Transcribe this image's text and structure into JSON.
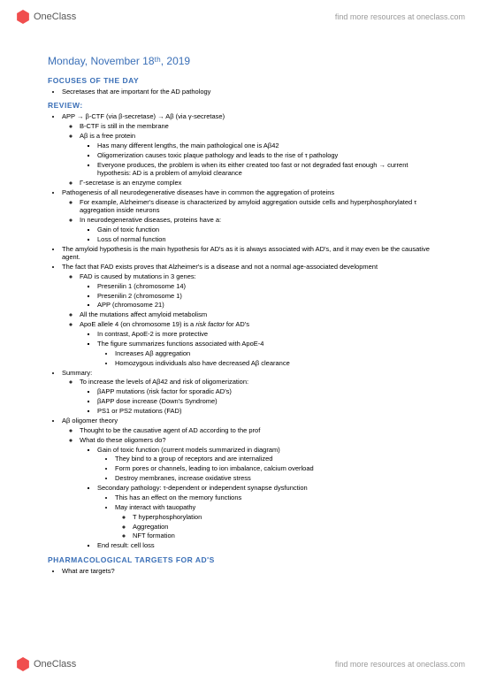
{
  "brand": {
    "name": "OneClass",
    "tagline": "find more resources at oneclass.com"
  },
  "date": "Monday, November 18ᵗʰ, 2019",
  "sections": {
    "focuses": {
      "title": "FOCUSES OF THE DAY",
      "items": [
        "Secretases that are important for the AD pathology"
      ]
    },
    "review": {
      "title": "REVIEW:",
      "app_line": "APP → β-CTF (via β-secretase) → Aβ (via γ-secretase)",
      "app_sub": [
        "Β-CTF is still in the membrane",
        "Aβ is a free protein"
      ],
      "app_sub2": [
        "Has many different lengths, the main pathological one is Aβ42",
        "Oligomerization causes toxic plaque pathology and leads to the rise of τ pathology",
        "Everyone produces, the problem is when its either created too fast or not degraded fast enough → current hypothesis: AD is a problem of amyloid clearance"
      ],
      "app_sub3": "Γ-secretase is an enzyme complex",
      "pathogenesis": "Pathogenesis of all neurodegenerative diseases have in common the aggregation of proteins",
      "pathogenesis_sub": [
        "For example, Alzheimer's disease is characterized by amyloid aggregation outside cells and hyperphosphorylated τ aggregation inside neurons",
        "In neurodegenerative diseases, proteins have a:"
      ],
      "pathogenesis_sub2": [
        "Gain of toxic function",
        "Loss of normal function"
      ],
      "amyloid": "The amyloid hypothesis is the main hypothesis for AD's as it is always associated with AD's, and it may even be the causative agent.",
      "fad": "The fact that FAD exists proves that Alzheimer's is a disease and not a normal age-associated development",
      "fad_genes_intro": "FAD is caused by mutations in 3 genes:",
      "fad_genes": [
        "Presenilin 1 (chromosome 14)",
        "Presenilin 2 (chromosome 1)",
        "APP (chromosome 21)"
      ],
      "mutations": "All the mutations affect amyloid metabolism",
      "apoe": "ApoE allele 4 (on chromosome 19) is a ",
      "apoe_risk": "risk factor",
      "apoe_tail": " for AD's",
      "apoe_sub": [
        "In contrast, ApoE-2 is more protective",
        "The figure summarizes functions associated with ApoE-4"
      ],
      "apoe_sub2": [
        "Increases Aβ aggregation",
        "Homozygous individuals also have decreased Aβ clearance"
      ],
      "summary": "Summary:",
      "summary_intro": "To increase the levels of Aβ42 and risk of oligomerization:",
      "summary_items": [
        "βAPP mutations (risk factor for sporadic AD's)",
        "βAPP dose increase (Down's Syndrome)",
        "PS1 or PS2 mutations (FAD)"
      ],
      "oligomer": "Aβ oligomer theory",
      "oligomer_sub": [
        "Thought to be the causative agent of AD according to the prof",
        "What do these oligomers do?"
      ],
      "oligomer_gain": "Gain of toxic function (current models summarized in diagram)",
      "oligomer_gain_items": [
        "They bind to a group of receptors and are internalized",
        "Form pores or channels, leading to ion imbalance, calcium overload",
        "Destroy membranes, increase oxidative stress"
      ],
      "secondary": "Secondary pathology: τ-dependent or independent synapse dysfunction",
      "secondary_items": [
        "This has an effect on the memory functions",
        "May interact with tauopathy"
      ],
      "tauopathy_items": [
        "Τ hyperphosphorylation",
        "Aggregation",
        "NFT formation"
      ],
      "end": "End result: cell loss"
    },
    "pharma": {
      "title_a": "PHARMACOLOGICAL TARGETS FOR ",
      "title_b": "AD'S",
      "items": [
        "What are targets?"
      ]
    }
  },
  "colors": {
    "accent": "#3a6fb7",
    "brand": "#f04e4e",
    "text": "#000000",
    "muted": "#9a9a9a"
  }
}
